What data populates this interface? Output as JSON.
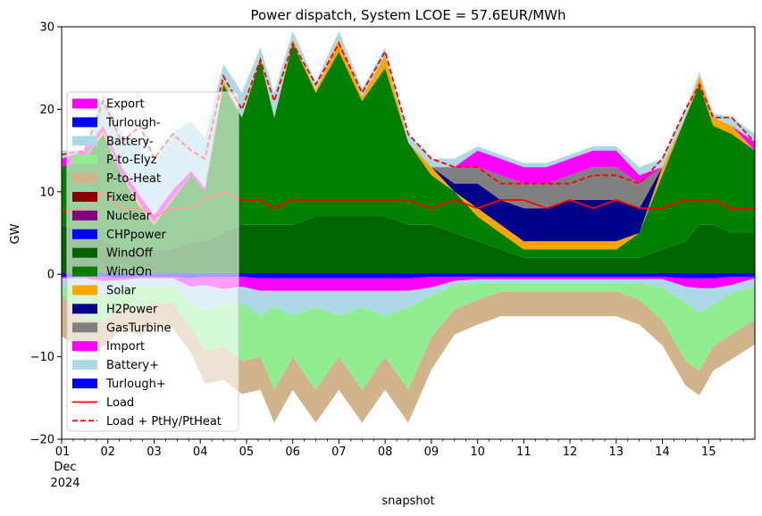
{
  "chart_data": {
    "type": "area",
    "title": "Power dispatch, System LCOE = 57.6EUR/MWh",
    "xlabel": "snapshot",
    "ylabel": "GW",
    "ylim": [
      -20,
      30
    ],
    "xlim_days": [
      1,
      16
    ],
    "grid": false,
    "legend_position": "upper-left",
    "y_ticks": [
      "30",
      "20",
      "10",
      "0",
      "−10",
      "−20"
    ],
    "x_ticks": [
      "01",
      "02",
      "03",
      "04",
      "05",
      "06",
      "07",
      "08",
      "09",
      "10",
      "11",
      "12",
      "13",
      "14",
      "15"
    ],
    "x_sublabel_month": "Dec",
    "x_sublabel_year": "2024",
    "x_day": [
      1,
      1.5,
      1.9,
      2.3,
      2.7,
      3.0,
      3.4,
      3.8,
      4.1,
      4.5,
      4.9,
      5.3,
      5.6,
      6.0,
      6.5,
      7.0,
      7.5,
      8.0,
      8.5,
      9.0,
      9.5,
      10.0,
      10.5,
      11.0,
      11.5,
      12.0,
      12.5,
      13.0,
      13.5,
      14.0,
      14.5,
      14.8,
      15.1,
      15.5,
      16.0
    ],
    "supply_series": [
      {
        "name": "WindOff",
        "color": "#006400",
        "values": [
          6,
          5,
          4,
          3,
          3,
          3,
          3,
          4,
          4,
          5,
          6,
          6,
          6,
          6,
          7,
          7,
          7,
          7,
          6,
          6,
          5,
          4,
          3,
          2,
          2,
          2,
          2,
          2,
          2,
          3,
          4,
          6,
          6,
          5,
          5
        ]
      },
      {
        "name": "WindOn",
        "color": "#008000",
        "values": [
          7,
          9,
          13,
          9,
          5,
          3,
          6,
          8,
          6,
          18,
          13,
          20,
          13,
          22,
          15,
          20,
          14,
          18,
          10,
          6,
          5,
          3,
          2,
          1,
          1,
          1,
          1,
          1,
          3,
          9,
          15,
          17,
          12,
          12,
          10
        ]
      },
      {
        "name": "Solar",
        "color": "#FFA500",
        "values": [
          0,
          0,
          0.5,
          0,
          0.5,
          0.2,
          0.2,
          0,
          0,
          0.5,
          0,
          0.5,
          0,
          0.5,
          0.3,
          1.5,
          0.5,
          1.5,
          0,
          1,
          0,
          1,
          1,
          1,
          1,
          1,
          1,
          1,
          0,
          1,
          0,
          1,
          1,
          1,
          0
        ]
      },
      {
        "name": "H2Power",
        "color": "#00008B",
        "values": [
          0,
          0,
          0,
          0,
          0,
          0,
          0,
          0,
          0,
          0,
          0,
          0,
          0,
          0,
          0,
          0,
          0,
          0,
          0,
          0,
          1,
          3,
          3,
          4,
          4,
          5,
          5,
          5,
          3,
          0,
          0,
          0,
          0,
          0,
          0
        ]
      },
      {
        "name": "GasTurbine",
        "color": "#808080",
        "values": [
          0,
          0,
          0,
          0,
          0,
          0,
          0,
          0,
          0,
          0,
          0,
          0,
          0,
          0,
          0,
          0,
          0,
          0,
          0,
          0,
          2,
          2,
          3,
          3,
          3,
          3,
          4,
          4,
          3,
          0,
          0,
          0,
          0,
          0,
          0
        ]
      },
      {
        "name": "Import",
        "color": "#FF00FF",
        "values": [
          1,
          1,
          0.5,
          1,
          1,
          1,
          1,
          0.5,
          0.5,
          0,
          0,
          0,
          0,
          0,
          0,
          0,
          0,
          0,
          0,
          0,
          0,
          2,
          2,
          2,
          2,
          2,
          2,
          2,
          1,
          0,
          0,
          0,
          0,
          0,
          1
        ]
      },
      {
        "name": "Battery+",
        "color": "#ADD8E6",
        "values": [
          1,
          0,
          4,
          4,
          6,
          6,
          7,
          6,
          6,
          2,
          3,
          1,
          3,
          1,
          1,
          1,
          1,
          1,
          1,
          1,
          1,
          0.5,
          0.5,
          0.5,
          0.5,
          0.5,
          0.5,
          0.5,
          1,
          1,
          1,
          0.5,
          0.5,
          1,
          1
        ]
      }
    ],
    "demand_series": [
      {
        "name": "Turlough-",
        "color": "#0000FF",
        "values": [
          -0.3,
          -0.3,
          -0.3,
          -0.5,
          -0.3,
          -0.3,
          -0.3,
          -0.5,
          -0.3,
          -0.3,
          -0.3,
          -0.5,
          -0.5,
          -0.5,
          -0.5,
          -0.5,
          -0.5,
          -0.5,
          -0.5,
          -0.3,
          -0.3,
          -0.3,
          -0.3,
          -0.3,
          -0.3,
          -0.3,
          -0.3,
          -0.3,
          -0.3,
          -0.3,
          -0.5,
          -0.5,
          -0.5,
          -0.3,
          -0.3
        ]
      },
      {
        "name": "Export",
        "color": "#FF00FF",
        "values": [
          -0.2,
          -0.2,
          -0.5,
          -0.2,
          -0.2,
          -0.2,
          -0.2,
          -1,
          -1,
          -1.5,
          -1.2,
          -1.5,
          -1.5,
          -1.5,
          -1.5,
          -1.5,
          -1.5,
          -1.5,
          -1.5,
          -1.3,
          -0.5,
          -0.3,
          -0.3,
          -0.3,
          -0.3,
          -0.3,
          -0.3,
          -0.3,
          -0.3,
          -0.3,
          -1,
          -1.2,
          -1.2,
          -1,
          -0.2
        ]
      },
      {
        "name": "Battery-",
        "color": "#ADD8E6",
        "values": [
          -1,
          -1,
          -2,
          -1,
          -1,
          -1,
          -1,
          -2,
          -3,
          -2,
          -2,
          -3,
          -2,
          -3,
          -2,
          -3,
          -2,
          -3,
          -2,
          -1,
          -0.5,
          -0.5,
          -0.5,
          -0.5,
          -0.5,
          -0.5,
          -0.5,
          -0.5,
          -0.5,
          -1,
          -2,
          -3,
          -2,
          -1,
          -1
        ]
      },
      {
        "name": "P-to-Elyz",
        "color": "#90EE90",
        "values": [
          -1,
          -4,
          -3,
          -2,
          -3,
          -2,
          -2,
          -3,
          -5,
          -5,
          -7,
          -5,
          -10,
          -5,
          -10,
          -5,
          -10,
          -5,
          -10,
          -5,
          -3,
          -2,
          -1,
          -1,
          -1,
          -1,
          -1,
          -1,
          -2,
          -4,
          -7,
          -7,
          -5,
          -5,
          -4
        ]
      },
      {
        "name": "P-to-Heat",
        "color": "#D2B48C",
        "values": [
          -5,
          -4,
          -3,
          -3,
          -3,
          -3,
          -3,
          -3,
          -4,
          -4,
          -4,
          -4,
          -4,
          -4,
          -4,
          -4,
          -4,
          -4,
          -4,
          -4,
          -3,
          -3,
          -3,
          -3,
          -3,
          -3,
          -3,
          -3,
          -3,
          -3,
          -3,
          -3,
          -3,
          -3,
          -3
        ]
      }
    ],
    "load": {
      "name": "Load",
      "color": "#FF0000",
      "values": [
        7.5,
        8,
        10,
        8,
        8,
        7,
        8,
        8,
        9,
        10,
        9,
        9,
        8,
        9,
        9,
        9,
        9,
        9,
        9,
        8,
        9,
        8,
        9,
        9,
        8,
        9,
        8,
        9,
        8,
        8,
        9,
        9,
        9,
        8,
        8
      ]
    },
    "load_ptx": {
      "name": "Load + PtHy/PtHeat",
      "color": "#FF0000",
      "style": "dashed",
      "values": [
        14.5,
        15,
        21,
        16,
        18,
        14,
        17,
        15,
        14,
        24,
        20,
        26,
        21,
        28,
        23,
        28,
        22,
        27,
        17,
        14,
        13,
        13,
        11,
        11,
        11,
        11,
        12,
        12,
        11,
        14,
        20,
        23,
        19,
        19,
        16
      ]
    },
    "legend": [
      {
        "label": "Export",
        "color": "#FF00FF",
        "kind": "patch"
      },
      {
        "label": "Turlough-",
        "color": "#0000FF",
        "kind": "patch"
      },
      {
        "label": "Battery-",
        "color": "#ADD8E6",
        "kind": "patch"
      },
      {
        "label": "P-to-Elyz",
        "color": "#90EE90",
        "kind": "patch"
      },
      {
        "label": "P-to-Heat",
        "color": "#D2B48C",
        "kind": "patch"
      },
      {
        "label": "Fixed",
        "color": "#8B0000",
        "kind": "patch"
      },
      {
        "label": "Nuclear",
        "color": "#800080",
        "kind": "patch"
      },
      {
        "label": "CHPpower",
        "color": "#0000FF",
        "kind": "patch"
      },
      {
        "label": "WindOff",
        "color": "#006400",
        "kind": "patch"
      },
      {
        "label": "WindOn",
        "color": "#008000",
        "kind": "patch"
      },
      {
        "label": "Solar",
        "color": "#FFA500",
        "kind": "patch"
      },
      {
        "label": "H2Power",
        "color": "#00008B",
        "kind": "patch"
      },
      {
        "label": "GasTurbine",
        "color": "#808080",
        "kind": "patch"
      },
      {
        "label": "Import",
        "color": "#FF00FF",
        "kind": "patch"
      },
      {
        "label": "Battery+",
        "color": "#ADD8E6",
        "kind": "patch"
      },
      {
        "label": "Turlough+",
        "color": "#0000FF",
        "kind": "patch"
      },
      {
        "label": "Load",
        "color": "#FF0000",
        "kind": "line"
      },
      {
        "label": "Load + PtHy/PtHeat",
        "color": "#FF0000",
        "kind": "dashed"
      }
    ]
  }
}
